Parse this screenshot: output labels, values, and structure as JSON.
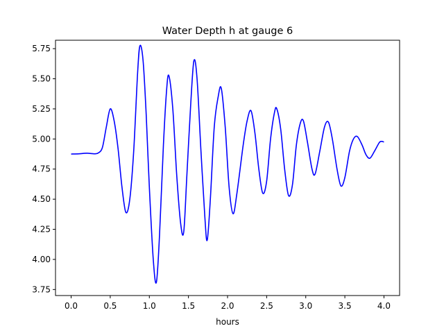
{
  "chart_data": {
    "type": "line",
    "title": "Water Depth h at gauge 6",
    "xlabel": "hours",
    "ylabel": "",
    "xlim": [
      -0.2,
      4.2
    ],
    "ylim": [
      3.7,
      5.82
    ],
    "xticks": [
      0.0,
      0.5,
      1.0,
      1.5,
      2.0,
      2.5,
      3.0,
      3.5,
      4.0
    ],
    "xtick_labels": [
      "0.0",
      "0.5",
      "1.0",
      "1.5",
      "2.0",
      "2.5",
      "3.0",
      "3.5",
      "4.0"
    ],
    "yticks": [
      3.75,
      4.0,
      4.25,
      4.5,
      4.75,
      5.0,
      5.25,
      5.5,
      5.75
    ],
    "ytick_labels": [
      "3.75",
      "4.00",
      "4.25",
      "4.50",
      "4.75",
      "5.00",
      "5.25",
      "5.50",
      "5.75"
    ],
    "grid": false,
    "legend": "none",
    "series": [
      {
        "color": "#0000ff",
        "points": [
          [
            0.0,
            4.875
          ],
          [
            0.1,
            4.877
          ],
          [
            0.2,
            4.882
          ],
          [
            0.3,
            4.877
          ],
          [
            0.35,
            4.885
          ],
          [
            0.4,
            4.93
          ],
          [
            0.45,
            5.1
          ],
          [
            0.5,
            5.25
          ],
          [
            0.55,
            5.15
          ],
          [
            0.6,
            4.92
          ],
          [
            0.65,
            4.6
          ],
          [
            0.7,
            4.39
          ],
          [
            0.75,
            4.5
          ],
          [
            0.8,
            4.9
          ],
          [
            0.85,
            5.55
          ],
          [
            0.88,
            5.775
          ],
          [
            0.92,
            5.65
          ],
          [
            0.96,
            5.2
          ],
          [
            1.0,
            4.6
          ],
          [
            1.05,
            4.0
          ],
          [
            1.09,
            3.81
          ],
          [
            1.13,
            4.2
          ],
          [
            1.18,
            4.95
          ],
          [
            1.22,
            5.4
          ],
          [
            1.25,
            5.525
          ],
          [
            1.3,
            5.25
          ],
          [
            1.35,
            4.7
          ],
          [
            1.4,
            4.3
          ],
          [
            1.44,
            4.23
          ],
          [
            1.48,
            4.7
          ],
          [
            1.53,
            5.3
          ],
          [
            1.57,
            5.65
          ],
          [
            1.61,
            5.5
          ],
          [
            1.66,
            4.9
          ],
          [
            1.71,
            4.35
          ],
          [
            1.74,
            4.16
          ],
          [
            1.78,
            4.5
          ],
          [
            1.83,
            5.1
          ],
          [
            1.88,
            5.35
          ],
          [
            1.92,
            5.42
          ],
          [
            1.97,
            5.1
          ],
          [
            2.02,
            4.6
          ],
          [
            2.07,
            4.38
          ],
          [
            2.12,
            4.55
          ],
          [
            2.2,
            4.95
          ],
          [
            2.25,
            5.15
          ],
          [
            2.3,
            5.235
          ],
          [
            2.35,
            5.05
          ],
          [
            2.4,
            4.75
          ],
          [
            2.45,
            4.55
          ],
          [
            2.5,
            4.65
          ],
          [
            2.55,
            5.0
          ],
          [
            2.6,
            5.22
          ],
          [
            2.63,
            5.25
          ],
          [
            2.68,
            5.08
          ],
          [
            2.73,
            4.75
          ],
          [
            2.78,
            4.53
          ],
          [
            2.83,
            4.62
          ],
          [
            2.88,
            4.95
          ],
          [
            2.93,
            5.13
          ],
          [
            2.97,
            5.15
          ],
          [
            3.02,
            4.98
          ],
          [
            3.08,
            4.75
          ],
          [
            3.12,
            4.71
          ],
          [
            3.18,
            4.9
          ],
          [
            3.24,
            5.1
          ],
          [
            3.29,
            5.14
          ],
          [
            3.34,
            5.0
          ],
          [
            3.4,
            4.75
          ],
          [
            3.45,
            4.61
          ],
          [
            3.5,
            4.68
          ],
          [
            3.56,
            4.9
          ],
          [
            3.61,
            5.0
          ],
          [
            3.66,
            5.02
          ],
          [
            3.72,
            4.95
          ],
          [
            3.77,
            4.87
          ],
          [
            3.82,
            4.84
          ],
          [
            3.88,
            4.9
          ],
          [
            3.94,
            4.97
          ],
          [
            3.97,
            4.98
          ],
          [
            4.0,
            4.975
          ]
        ]
      }
    ]
  }
}
